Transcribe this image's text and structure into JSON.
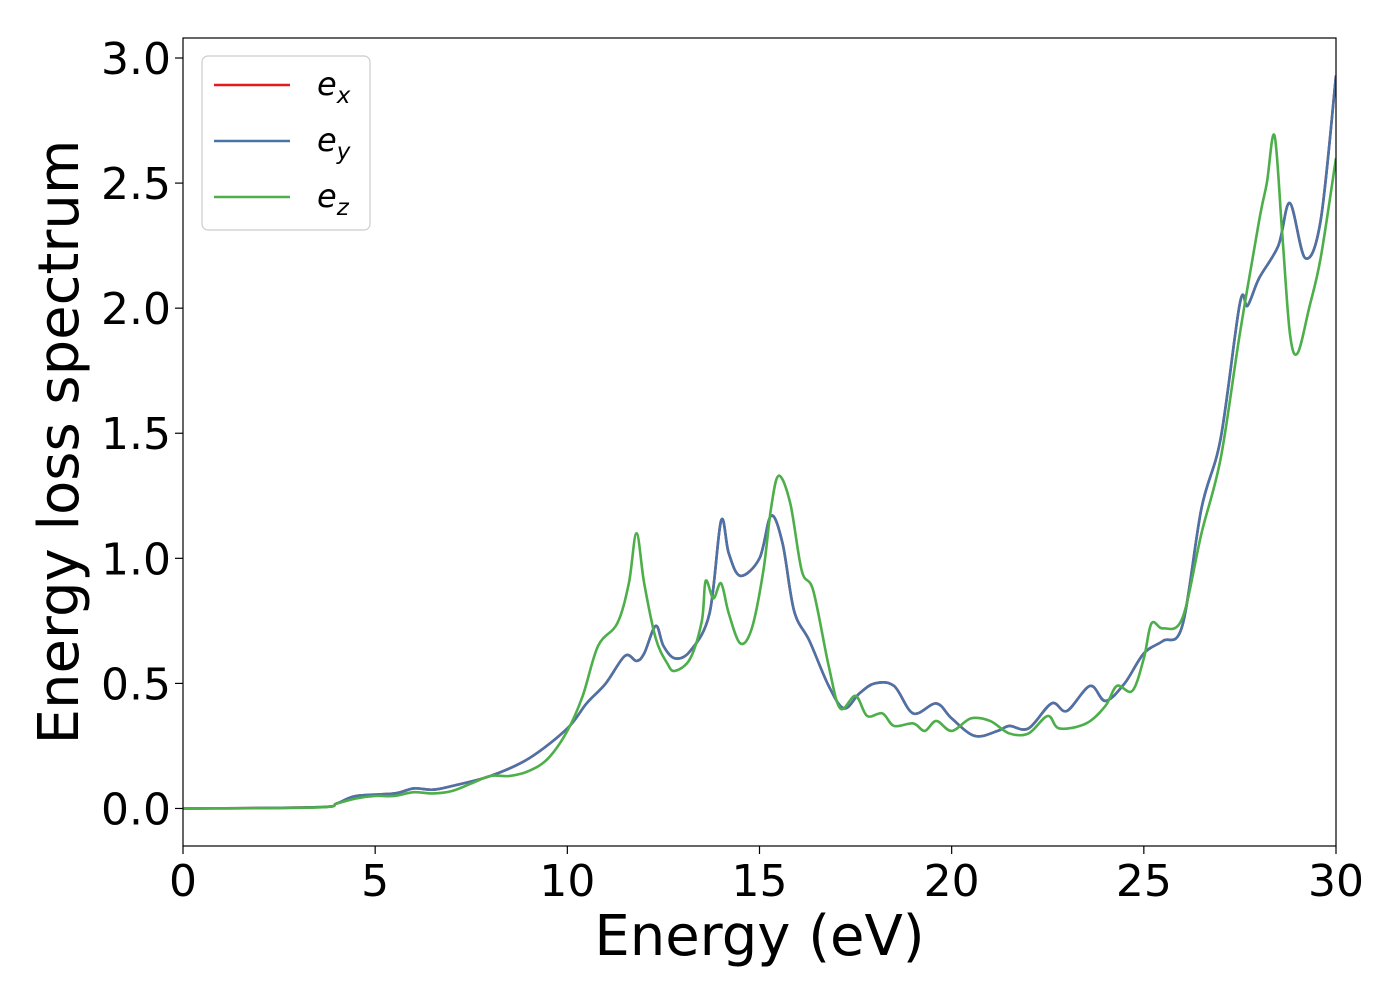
{
  "chart_data": {
    "type": "line",
    "title": "",
    "xlabel": "Energy (eV)",
    "ylabel": "Energy loss spectrum",
    "xlim": [
      0,
      30
    ],
    "ylim": [
      -0.15,
      3.08
    ],
    "xticks": [
      0,
      5,
      10,
      15,
      20,
      25,
      30
    ],
    "xtick_labels": [
      "0",
      "5",
      "10",
      "15",
      "20",
      "25",
      "30"
    ],
    "yticks": [
      0.0,
      0.5,
      1.0,
      1.5,
      2.0,
      2.5,
      3.0
    ],
    "ytick_labels": [
      "0.0",
      "0.5",
      "1.0",
      "1.5",
      "2.0",
      "2.5",
      "3.0"
    ],
    "grid": false,
    "legend_position": "top-left",
    "series": [
      {
        "name": "e_x",
        "legend_base": "e",
        "legend_sub": "x",
        "color": "#e41a1c",
        "points": [
          [
            0,
            0
          ],
          [
            3.5,
            0.005
          ],
          [
            4.0,
            0.02
          ],
          [
            4.5,
            0.05
          ],
          [
            5.5,
            0.06
          ],
          [
            6.0,
            0.08
          ],
          [
            6.5,
            0.075
          ],
          [
            7.0,
            0.09
          ],
          [
            8.0,
            0.13
          ],
          [
            9.0,
            0.2
          ],
          [
            10.0,
            0.32
          ],
          [
            10.5,
            0.42
          ],
          [
            11.0,
            0.5
          ],
          [
            11.5,
            0.61
          ],
          [
            11.8,
            0.59
          ],
          [
            12.0,
            0.62
          ],
          [
            12.3,
            0.73
          ],
          [
            12.5,
            0.65
          ],
          [
            12.8,
            0.6
          ],
          [
            13.2,
            0.63
          ],
          [
            13.7,
            0.78
          ],
          [
            14.0,
            1.15
          ],
          [
            14.2,
            1.02
          ],
          [
            14.5,
            0.93
          ],
          [
            15.0,
            1.0
          ],
          [
            15.3,
            1.17
          ],
          [
            15.6,
            1.06
          ],
          [
            15.9,
            0.79
          ],
          [
            16.3,
            0.67
          ],
          [
            16.8,
            0.49
          ],
          [
            17.2,
            0.4
          ],
          [
            17.6,
            0.46
          ],
          [
            18.0,
            0.5
          ],
          [
            18.5,
            0.49
          ],
          [
            19.0,
            0.38
          ],
          [
            19.6,
            0.42
          ],
          [
            20.0,
            0.36
          ],
          [
            20.6,
            0.29
          ],
          [
            21.2,
            0.31
          ],
          [
            21.5,
            0.33
          ],
          [
            22.0,
            0.32
          ],
          [
            22.6,
            0.42
          ],
          [
            23.0,
            0.39
          ],
          [
            23.6,
            0.49
          ],
          [
            24.0,
            0.43
          ],
          [
            24.5,
            0.5
          ],
          [
            25.0,
            0.62
          ],
          [
            25.5,
            0.67
          ],
          [
            26.0,
            0.73
          ],
          [
            26.5,
            1.2
          ],
          [
            27.0,
            1.48
          ],
          [
            27.5,
            2.02
          ],
          [
            27.7,
            2.01
          ],
          [
            28.0,
            2.12
          ],
          [
            28.5,
            2.25
          ],
          [
            28.8,
            2.42
          ],
          [
            29.2,
            2.2
          ],
          [
            29.6,
            2.35
          ],
          [
            30.0,
            2.93
          ]
        ]
      },
      {
        "name": "e_y",
        "legend_base": "e",
        "legend_sub": "y",
        "color": "#4a74a8",
        "points": [
          [
            0,
            0
          ],
          [
            3.5,
            0.005
          ],
          [
            4.0,
            0.02
          ],
          [
            4.5,
            0.05
          ],
          [
            5.5,
            0.06
          ],
          [
            6.0,
            0.08
          ],
          [
            6.5,
            0.075
          ],
          [
            7.0,
            0.09
          ],
          [
            8.0,
            0.13
          ],
          [
            9.0,
            0.2
          ],
          [
            10.0,
            0.32
          ],
          [
            10.5,
            0.42
          ],
          [
            11.0,
            0.5
          ],
          [
            11.5,
            0.61
          ],
          [
            11.8,
            0.59
          ],
          [
            12.0,
            0.62
          ],
          [
            12.3,
            0.73
          ],
          [
            12.5,
            0.65
          ],
          [
            12.8,
            0.6
          ],
          [
            13.2,
            0.63
          ],
          [
            13.7,
            0.78
          ],
          [
            14.0,
            1.15
          ],
          [
            14.2,
            1.02
          ],
          [
            14.5,
            0.93
          ],
          [
            15.0,
            1.0
          ],
          [
            15.3,
            1.17
          ],
          [
            15.6,
            1.06
          ],
          [
            15.9,
            0.79
          ],
          [
            16.3,
            0.67
          ],
          [
            16.8,
            0.49
          ],
          [
            17.2,
            0.4
          ],
          [
            17.6,
            0.46
          ],
          [
            18.0,
            0.5
          ],
          [
            18.5,
            0.49
          ],
          [
            19.0,
            0.38
          ],
          [
            19.6,
            0.42
          ],
          [
            20.0,
            0.36
          ],
          [
            20.6,
            0.29
          ],
          [
            21.2,
            0.31
          ],
          [
            21.5,
            0.33
          ],
          [
            22.0,
            0.32
          ],
          [
            22.6,
            0.42
          ],
          [
            23.0,
            0.39
          ],
          [
            23.6,
            0.49
          ],
          [
            24.0,
            0.43
          ],
          [
            24.5,
            0.5
          ],
          [
            25.0,
            0.62
          ],
          [
            25.5,
            0.67
          ],
          [
            26.0,
            0.73
          ],
          [
            26.5,
            1.2
          ],
          [
            27.0,
            1.48
          ],
          [
            27.5,
            2.02
          ],
          [
            27.7,
            2.01
          ],
          [
            28.0,
            2.12
          ],
          [
            28.5,
            2.25
          ],
          [
            28.8,
            2.42
          ],
          [
            29.2,
            2.2
          ],
          [
            29.6,
            2.35
          ],
          [
            30.0,
            2.93
          ]
        ]
      },
      {
        "name": "e_z",
        "legend_base": "e",
        "legend_sub": "z",
        "color": "#4daf4a",
        "points": [
          [
            0,
            0
          ],
          [
            3.5,
            0.004
          ],
          [
            4.0,
            0.02
          ],
          [
            4.5,
            0.04
          ],
          [
            5.0,
            0.05
          ],
          [
            5.5,
            0.05
          ],
          [
            6.0,
            0.065
          ],
          [
            6.5,
            0.06
          ],
          [
            7.0,
            0.07
          ],
          [
            7.5,
            0.1
          ],
          [
            8.0,
            0.13
          ],
          [
            8.5,
            0.13
          ],
          [
            9.0,
            0.15
          ],
          [
            9.5,
            0.2
          ],
          [
            10.0,
            0.31
          ],
          [
            10.4,
            0.45
          ],
          [
            10.8,
            0.65
          ],
          [
            11.3,
            0.74
          ],
          [
            11.6,
            0.9
          ],
          [
            11.8,
            1.1
          ],
          [
            12.0,
            0.9
          ],
          [
            12.3,
            0.68
          ],
          [
            12.6,
            0.58
          ],
          [
            12.8,
            0.55
          ],
          [
            13.2,
            0.6
          ],
          [
            13.5,
            0.75
          ],
          [
            13.6,
            0.91
          ],
          [
            13.8,
            0.84
          ],
          [
            14.0,
            0.9
          ],
          [
            14.2,
            0.78
          ],
          [
            14.5,
            0.66
          ],
          [
            14.8,
            0.72
          ],
          [
            15.1,
            0.95
          ],
          [
            15.3,
            1.2
          ],
          [
            15.5,
            1.33
          ],
          [
            15.8,
            1.22
          ],
          [
            16.1,
            0.95
          ],
          [
            16.4,
            0.87
          ],
          [
            16.8,
            0.57
          ],
          [
            17.1,
            0.4
          ],
          [
            17.5,
            0.45
          ],
          [
            17.8,
            0.37
          ],
          [
            18.2,
            0.38
          ],
          [
            18.5,
            0.33
          ],
          [
            19.0,
            0.34
          ],
          [
            19.3,
            0.31
          ],
          [
            19.6,
            0.35
          ],
          [
            20.0,
            0.31
          ],
          [
            20.5,
            0.36
          ],
          [
            21.0,
            0.35
          ],
          [
            21.5,
            0.3
          ],
          [
            22.0,
            0.3
          ],
          [
            22.5,
            0.37
          ],
          [
            22.8,
            0.32
          ],
          [
            23.5,
            0.34
          ],
          [
            24.0,
            0.41
          ],
          [
            24.3,
            0.49
          ],
          [
            24.7,
            0.47
          ],
          [
            25.0,
            0.6
          ],
          [
            25.2,
            0.74
          ],
          [
            25.5,
            0.72
          ],
          [
            26.0,
            0.76
          ],
          [
            26.5,
            1.1
          ],
          [
            27.0,
            1.4
          ],
          [
            27.5,
            1.9
          ],
          [
            28.0,
            2.35
          ],
          [
            28.2,
            2.5
          ],
          [
            28.4,
            2.69
          ],
          [
            28.6,
            2.3
          ],
          [
            28.8,
            1.9
          ],
          [
            29.0,
            1.82
          ],
          [
            29.3,
            2.0
          ],
          [
            29.6,
            2.2
          ],
          [
            30.0,
            2.6
          ]
        ]
      }
    ]
  }
}
